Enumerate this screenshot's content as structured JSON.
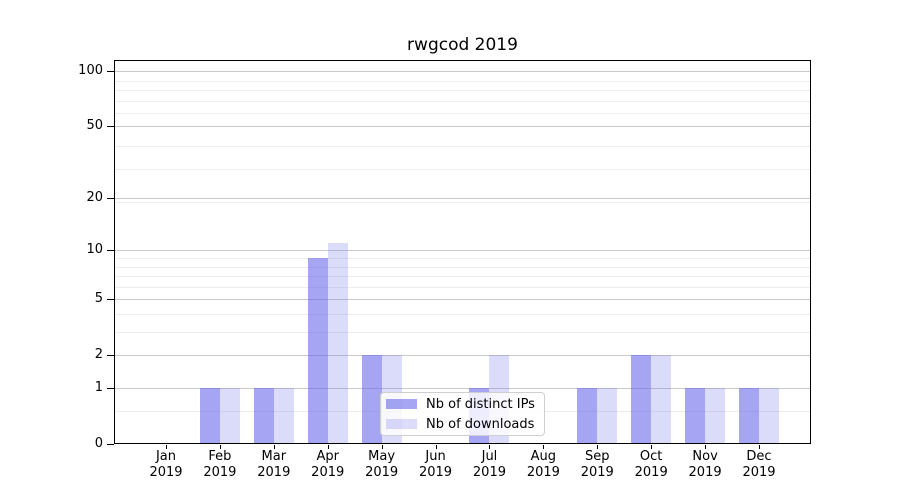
{
  "chart_data": {
    "type": "bar",
    "title": "rwgcod 2019",
    "categories": [
      {
        "month": "Jan",
        "year": "2019"
      },
      {
        "month": "Feb",
        "year": "2019"
      },
      {
        "month": "Mar",
        "year": "2019"
      },
      {
        "month": "Apr",
        "year": "2019"
      },
      {
        "month": "May",
        "year": "2019"
      },
      {
        "month": "Jun",
        "year": "2019"
      },
      {
        "month": "Jul",
        "year": "2019"
      },
      {
        "month": "Aug",
        "year": "2019"
      },
      {
        "month": "Sep",
        "year": "2019"
      },
      {
        "month": "Oct",
        "year": "2019"
      },
      {
        "month": "Nov",
        "year": "2019"
      },
      {
        "month": "Dec",
        "year": "2019"
      }
    ],
    "series": [
      {
        "name": "Nb of distinct IPs",
        "fill": "rgba(110,110,235,0.62)",
        "swatch_hex": "#A5A5F1",
        "values": [
          0,
          1,
          1,
          9,
          2,
          0,
          1,
          0,
          1,
          2,
          1,
          1
        ]
      },
      {
        "name": "Nb of downloads",
        "fill": "rgba(110,110,235,0.25)",
        "swatch_hex": "#DBDBF9",
        "values": [
          0,
          1,
          1,
          11,
          2,
          0,
          2,
          0,
          1,
          2,
          1,
          1
        ]
      }
    ],
    "xlabel": "",
    "ylabel": "",
    "yscale": "log1p",
    "yticks": [
      0,
      1,
      2,
      5,
      10,
      20,
      50,
      100
    ],
    "minor_yticks": [
      0.5,
      3,
      4,
      6,
      7,
      8,
      9,
      19,
      29,
      39,
      59,
      69,
      79,
      89
    ],
    "ylim": [
      0,
      115
    ],
    "grid": "horizontal",
    "legend": {
      "position": "lower-center",
      "items": [
        "Nb of distinct IPs",
        "Nb of downloads"
      ]
    }
  },
  "colors": {
    "grid_major": "#C9C9C9",
    "grid_minor": "#EDEDED",
    "axis": "#000000",
    "background": "#FFFFFF",
    "legend_border": "#CFCFCF"
  }
}
